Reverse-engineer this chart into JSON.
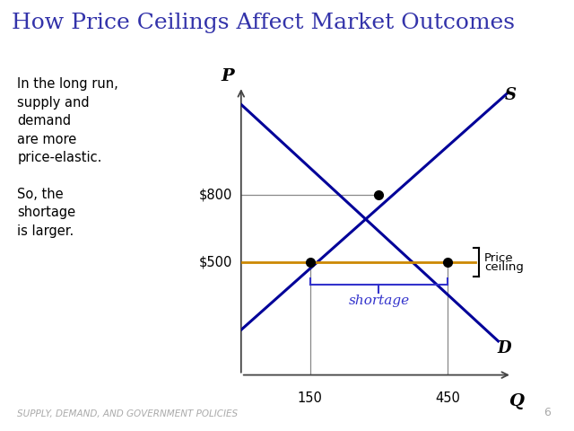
{
  "title": "How Price Ceilings Affect Market Outcomes",
  "title_color": "#3333aa",
  "title_fontsize": 18,
  "background_color": "#ffffff",
  "footer_text": "SUPPLY, DEMAND, AND GOVERNMENT POLICIES",
  "footer_number": "6",
  "footer_color": "#aaaaaa",
  "left_text_lines": [
    "In the long run,",
    "supply and",
    "demand",
    "are more",
    "price-elastic.",
    "",
    "So, the",
    "shortage",
    "is larger."
  ],
  "curve_color": "#000099",
  "curve_linewidth": 2.2,
  "price_ceiling": 500,
  "equilibrium_price": 800,
  "equilibrium_qty": 300,
  "supply_qty_at_ceiling": 150,
  "demand_qty_at_ceiling": 450,
  "ceiling_line_color": "#cc8800",
  "ceiling_linewidth": 2.0,
  "shortage_color": "#3333cc",
  "dot_color": "#000000",
  "dot_size": 7,
  "axis_color": "#444444",
  "xmin": 0,
  "xmax": 600,
  "ymin": 0,
  "ymax": 1300
}
